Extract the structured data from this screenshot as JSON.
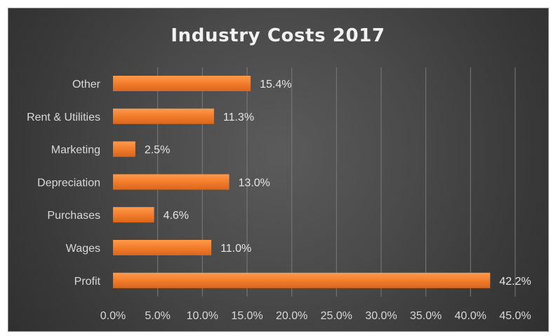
{
  "chart_data": {
    "type": "bar",
    "orientation": "horizontal",
    "title": "Industry Costs 2017",
    "categories": [
      "Other",
      "Rent & Utilities",
      "Marketing",
      "Depreciation",
      "Purchases",
      "Wages",
      "Profit"
    ],
    "values": [
      15.4,
      11.3,
      2.5,
      13.0,
      4.6,
      11.0,
      42.2
    ],
    "data_labels": [
      "15.4%",
      "11.3%",
      "2.5%",
      "13.0%",
      "4.6%",
      "11.0%",
      "42.2%"
    ],
    "x_ticks": [
      "0.0%",
      "5.0%",
      "10.0%",
      "15.0%",
      "20.0%",
      "25.0%",
      "30.0%",
      "35.0%",
      "40.0%",
      "45.0%"
    ],
    "xlim": [
      0,
      45
    ],
    "xlabel": "",
    "ylabel": "",
    "grid": true,
    "legend": "none",
    "colors": {
      "bar_fill": "#f07a2a",
      "bar_highlight": "#ff9a4a",
      "gridline": "#7a7a7a",
      "background": "#464646",
      "text": "#d9d9d9"
    }
  }
}
